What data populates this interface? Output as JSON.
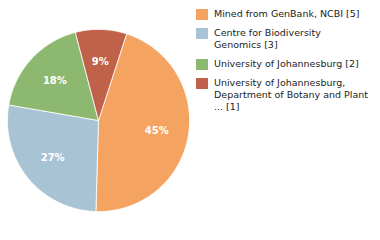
{
  "chart_data": {
    "type": "pie",
    "categories": [
      "Mined from GenBank, NCBI [5]",
      "Centre for Biodiversity\nGenomics [3]",
      "University of Johannesburg [2]",
      "University of Johannesburg,\nDepartment of Botany and Plant\n... [1]"
    ],
    "values": [
      45,
      27,
      18,
      9
    ],
    "value_labels": [
      "45%",
      "27%",
      "18%",
      "9%"
    ],
    "colors": [
      "#F4A460",
      "#A8C4D4",
      "#8DB870",
      "#C0614A"
    ],
    "data_labels": true,
    "legend": "right"
  }
}
